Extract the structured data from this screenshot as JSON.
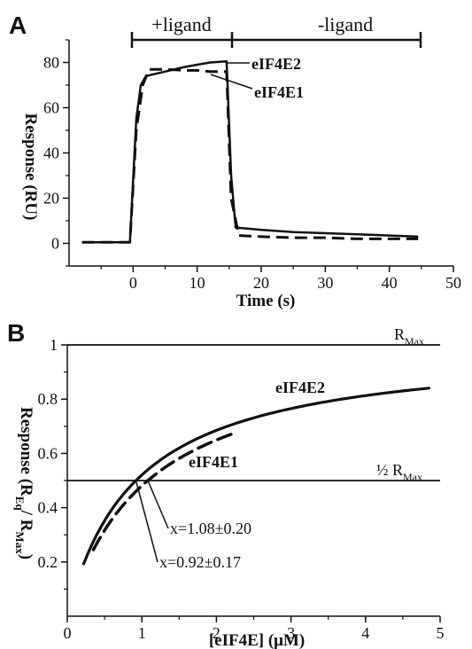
{
  "chart_data": [
    {
      "panel": "A",
      "type": "line",
      "xlabel": "Time (s)",
      "ylabel": "Response (RU)",
      "xlim": [
        -10,
        50
      ],
      "ylim": [
        -10,
        90
      ],
      "xticks": [
        0,
        10,
        20,
        30,
        40,
        50
      ],
      "xtick_labels": [
        "0",
        "10",
        "20",
        "30",
        "40",
        "50"
      ],
      "yticks": [
        0,
        20,
        40,
        60,
        80
      ],
      "ytick_labels": [
        "0",
        "20",
        "40",
        "60",
        "80"
      ],
      "grid": false,
      "phases": [
        {
          "label": "+ligand",
          "start": 0,
          "end": 15
        },
        {
          "label": "-ligand",
          "start": 15,
          "end": 44.5
        }
      ],
      "series": [
        {
          "name": "eIF4E2",
          "style": "solid",
          "x": [
            -8,
            -0.5,
            0.5,
            1.2,
            2,
            5,
            8,
            10,
            12,
            14.6,
            15.3,
            16,
            20,
            25,
            30,
            35,
            40,
            44.5
          ],
          "y": [
            0.5,
            0.5,
            55,
            70,
            74,
            76,
            78,
            79,
            80,
            80.5,
            30,
            7,
            6,
            5,
            4.5,
            4,
            3.5,
            3
          ]
        },
        {
          "name": "eIF4E1",
          "style": "dashed",
          "x": [
            -8,
            -0.5,
            0.5,
            1.5,
            2.5,
            5,
            8,
            10,
            12,
            14.6,
            15.3,
            16.5,
            20,
            25,
            30,
            35,
            40,
            44.5
          ],
          "y": [
            0.5,
            0.5,
            50,
            70,
            77,
            77,
            76.5,
            76.5,
            76,
            76,
            20,
            3.5,
            3,
            2.5,
            2.5,
            2,
            2,
            2
          ]
        }
      ]
    },
    {
      "panel": "B",
      "type": "line",
      "xlabel": "[eIF4E] (μM)",
      "ylabel_parts": {
        "main": "Response (R",
        "sub1": "Eq",
        "mid": "/ R",
        "sub2": "Max",
        "end": ")"
      },
      "xlim": [
        0,
        5
      ],
      "ylim": [
        0,
        1
      ],
      "xticks": [
        0,
        1,
        2,
        3,
        4,
        5
      ],
      "xtick_labels": [
        "0",
        "1",
        "2",
        "3",
        "4",
        "5"
      ],
      "yticks": [
        0.2,
        0.4,
        0.6,
        0.8,
        1
      ],
      "ytick_labels": [
        "0.2",
        "0.4",
        "0.6",
        "0.8",
        "1"
      ],
      "grid": false,
      "reference_lines": [
        {
          "y": 1.0,
          "label_main": "R",
          "label_sub": "Max"
        },
        {
          "y": 0.5,
          "label_main": "½ R",
          "label_sub": "Max"
        }
      ],
      "series": [
        {
          "name": "eIF4E2",
          "style": "solid",
          "kd": 0.92,
          "x_range": [
            0.22,
            4.85
          ]
        },
        {
          "name": "eIF4E1",
          "style": "dashed",
          "kd": 1.08,
          "x_range": [
            0.35,
            2.2
          ]
        }
      ],
      "annotations": [
        {
          "text": "x=1.08±0.20",
          "target_x": 1.08
        },
        {
          "text": "x=0.92±0.17",
          "target_x": 0.92
        }
      ]
    }
  ]
}
